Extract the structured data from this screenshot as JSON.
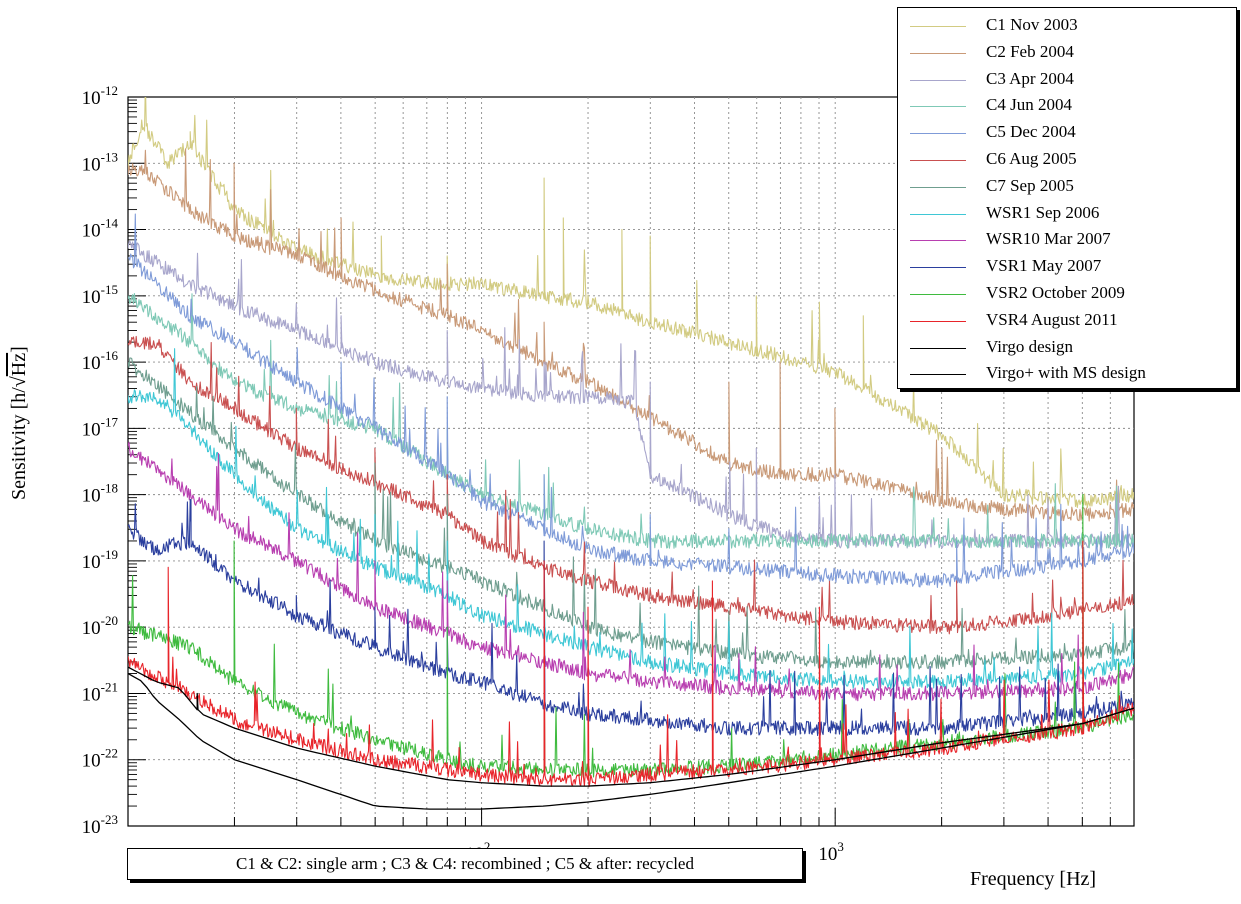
{
  "chart_data": {
    "type": "line",
    "title": "",
    "xlabel": "Frequency [Hz]",
    "ylabel_main": "Sensitivity [h/",
    "ylabel_sqrt": "Hz",
    "ylabel_end": "]",
    "x_scale": "log",
    "y_scale": "log",
    "xlim": [
      10,
      7000
    ],
    "ylim": [
      1e-23,
      1e-12
    ],
    "grid": true,
    "legend_position": "top-right",
    "x_ticks": [
      {
        "base": "10",
        "exp": "2"
      },
      {
        "base": "10",
        "exp": "3"
      }
    ],
    "y_ticks": [
      {
        "base": "10",
        "exp": "-12"
      },
      {
        "base": "10",
        "exp": "-13"
      },
      {
        "base": "10",
        "exp": "-14"
      },
      {
        "base": "10",
        "exp": "-15"
      },
      {
        "base": "10",
        "exp": "-16"
      },
      {
        "base": "10",
        "exp": "-17"
      },
      {
        "base": "10",
        "exp": "-18"
      },
      {
        "base": "10",
        "exp": "-19"
      },
      {
        "base": "10",
        "exp": "-20"
      },
      {
        "base": "10",
        "exp": "-21"
      },
      {
        "base": "10",
        "exp": "-22"
      },
      {
        "base": "10",
        "exp": "-23"
      }
    ],
    "annotation": "C1 & C2: single arm ; C3 & C4: recombined ; C5 & after: recycled",
    "series": [
      {
        "name": "C1 Nov 2003",
        "color": "#d2cb82",
        "x": [
          10,
          11,
          13,
          15,
          20,
          30,
          50,
          80,
          100,
          150,
          200,
          300,
          500,
          800,
          1000,
          1500,
          2000,
          3000,
          5000,
          7000
        ],
        "y": [
          1e-13,
          4e-13,
          1e-13,
          2e-13,
          2e-14,
          5e-15,
          2e-15,
          1.5e-15,
          1.5e-15,
          1e-15,
          8e-16,
          4e-16,
          2e-16,
          1e-16,
          7e-17,
          2e-17,
          8e-18,
          1e-18,
          8e-19,
          1e-18
        ],
        "spikes": [
          [
            15,
            3e-13
          ],
          [
            52,
            8e-15
          ],
          [
            80,
            4e-15
          ],
          [
            150,
            6e-14
          ],
          [
            170,
            1.5e-14
          ],
          [
            250,
            1e-14
          ],
          [
            300,
            8e-15
          ],
          [
            600,
            1e-15
          ],
          [
            900,
            8e-16
          ],
          [
            1200,
            5e-16
          ]
        ]
      },
      {
        "name": "C2 Feb 2004",
        "color": "#c99a78",
        "x": [
          10,
          11,
          15,
          20,
          30,
          50,
          80,
          100,
          150,
          200,
          300,
          500,
          700,
          1000,
          1500,
          2000,
          3000,
          5000,
          7000
        ],
        "y": [
          8e-14,
          8e-14,
          2e-14,
          8e-15,
          4e-15,
          1.2e-15,
          5e-16,
          3e-16,
          1e-16,
          5e-17,
          1.5e-17,
          3e-18,
          2e-18,
          2e-18,
          1.2e-18,
          8e-19,
          6e-19,
          5e-19,
          6e-19
        ],
        "spikes": [
          [
            20,
            1e-13
          ],
          [
            40,
            1.5e-14
          ],
          [
            80,
            3e-15
          ],
          [
            150,
            4e-16
          ],
          [
            300,
            2e-17
          ],
          [
            500,
            5e-17
          ],
          [
            700,
            1e-16
          ],
          [
            1000,
            2e-17
          ],
          [
            2000,
            5e-18
          ]
        ]
      },
      {
        "name": "C3 Apr 2004",
        "color": "#a8a6cc",
        "x": [
          10,
          15,
          20,
          30,
          50,
          80,
          100,
          150,
          200,
          270,
          300,
          500,
          700,
          1000,
          1500,
          2000,
          3000,
          5000,
          7000
        ],
        "y": [
          6e-15,
          1.5e-15,
          7e-16,
          3e-16,
          1e-16,
          5e-17,
          4e-17,
          3e-17,
          3e-17,
          2.5e-17,
          2e-18,
          5e-19,
          2.5e-19,
          2e-19,
          2e-19,
          2e-19,
          2e-19,
          2e-19,
          2e-19
        ],
        "spikes": [
          [
            40,
            5e-16
          ],
          [
            80,
            3e-16
          ],
          [
            150,
            1e-16
          ],
          [
            300,
            5e-17
          ],
          [
            600,
            5e-18
          ],
          [
            1000,
            2e-18
          ]
        ]
      },
      {
        "name": "C4 Jun 2004",
        "color": "#7fc9b6",
        "x": [
          10,
          15,
          20,
          30,
          50,
          80,
          100,
          150,
          200,
          300,
          500,
          1000,
          2000,
          3000,
          5000,
          7000
        ],
        "y": [
          1e-15,
          2e-16,
          5e-17,
          2e-17,
          1e-17,
          2e-18,
          1e-18,
          5e-19,
          3e-19,
          2e-19,
          2e-19,
          2e-19,
          2e-19,
          2e-19,
          2e-19,
          2e-19
        ],
        "spikes": [
          [
            40,
            3e-17
          ],
          [
            80,
            1e-17
          ],
          [
            150,
            2e-18
          ]
        ]
      },
      {
        "name": "C5 Dec 2004",
        "color": "#7f9bd8",
        "x": [
          10,
          15,
          20,
          30,
          50,
          80,
          100,
          150,
          200,
          300,
          500,
          1000,
          2000,
          3000,
          5000,
          7000
        ],
        "y": [
          4e-15,
          5e-16,
          2e-16,
          5e-17,
          1e-17,
          2e-18,
          8e-19,
          3e-19,
          1.5e-19,
          1e-19,
          8e-20,
          6e-20,
          5e-20,
          7e-20,
          1e-19,
          1.5e-19
        ],
        "spikes": [
          [
            40,
            1e-16
          ],
          [
            80,
            3e-17
          ],
          [
            150,
            2e-18
          ],
          [
            300,
            5e-19
          ],
          [
            2200,
            2e-19
          ]
        ]
      },
      {
        "name": "C6 Aug 2005",
        "color": "#c95050",
        "x": [
          10,
          12,
          15,
          20,
          30,
          50,
          80,
          100,
          150,
          200,
          300,
          500,
          1000,
          2000,
          3000,
          5000,
          7000
        ],
        "y": [
          2e-16,
          2e-16,
          5e-17,
          2e-17,
          5e-18,
          1.5e-18,
          5e-19,
          2e-19,
          8e-20,
          5e-20,
          3e-20,
          2e-20,
          1.2e-20,
          1e-20,
          1.2e-20,
          1.8e-20,
          2.5e-20
        ],
        "spikes": [
          [
            30,
            2e-17
          ],
          [
            50,
            5e-18
          ],
          [
            80,
            2e-18
          ],
          [
            2200,
            5e-20
          ]
        ]
      },
      {
        "name": "C7 Sep 2005",
        "color": "#6f9e8f",
        "x": [
          10,
          20,
          30,
          50,
          80,
          100,
          150,
          200,
          300,
          500,
          1000,
          2000,
          5000,
          7000
        ],
        "y": [
          1e-16,
          5e-18,
          1e-18,
          2e-19,
          8e-20,
          5e-20,
          2e-20,
          1e-20,
          6e-21,
          4e-21,
          3e-21,
          3e-21,
          4e-21,
          5e-21
        ],
        "spikes": [
          [
            50,
            3e-18
          ],
          [
            80,
            1e-18
          ],
          [
            150,
            1e-19
          ]
        ]
      },
      {
        "name": "WSR1 Sep 2006",
        "color": "#3fc7d5",
        "x": [
          10,
          12,
          15,
          20,
          30,
          50,
          80,
          100,
          150,
          200,
          300,
          500,
          1000,
          2000,
          5000,
          7000
        ],
        "y": [
          3e-17,
          3e-17,
          1e-17,
          2e-18,
          3e-19,
          8e-20,
          3e-20,
          1.5e-20,
          8e-21,
          5e-21,
          3e-21,
          2e-21,
          1.5e-21,
          1.5e-21,
          2e-21,
          3e-21
        ],
        "spikes": [
          [
            50,
            5e-19
          ],
          [
            80,
            2e-19
          ],
          [
            150,
            5e-20
          ]
        ]
      },
      {
        "name": "WSR10 Mar 2007",
        "color": "#b83fb0",
        "x": [
          10,
          15,
          20,
          30,
          50,
          80,
          100,
          150,
          200,
          300,
          500,
          1000,
          2000,
          5000,
          7000
        ],
        "y": [
          5e-18,
          1e-18,
          3e-19,
          1e-19,
          2e-20,
          8e-21,
          5e-21,
          3e-21,
          2e-21,
          1.5e-21,
          1.2e-21,
          1e-21,
          1e-21,
          1.2e-21,
          2e-21
        ],
        "spikes": [
          [
            50,
            1e-19
          ],
          [
            80,
            5e-20
          ]
        ]
      },
      {
        "name": "VSR1 May 2007",
        "color": "#2b3f9e",
        "x": [
          10,
          12,
          15,
          20,
          30,
          50,
          80,
          100,
          150,
          200,
          300,
          500,
          1000,
          2000,
          5000,
          7000
        ],
        "y": [
          3e-19,
          1.5e-19,
          2e-19,
          5e-20,
          1.5e-20,
          5e-21,
          2e-21,
          1.5e-21,
          7e-22,
          5e-22,
          4e-22,
          3e-22,
          3e-22,
          3e-22,
          5e-22,
          7e-22
        ],
        "spikes": [
          [
            15,
            4e-19
          ],
          [
            30,
            3e-20
          ],
          [
            50,
            2e-20
          ],
          [
            80,
            1e-20
          ],
          [
            150,
            2e-19
          ]
        ]
      },
      {
        "name": "VSR2 October 2009",
        "color": "#3fbb3f",
        "x": [
          10,
          15,
          20,
          30,
          50,
          80,
          100,
          150,
          200,
          300,
          500,
          1000,
          2000,
          5000,
          7000
        ],
        "y": [
          1e-20,
          5e-21,
          1.5e-21,
          5e-22,
          2e-22,
          1e-22,
          8e-23,
          7e-23,
          7e-23,
          7e-23,
          8e-23,
          1.2e-22,
          1.8e-22,
          3e-22,
          5e-22
        ],
        "spikes": [
          [
            20,
            2e-19
          ],
          [
            80,
            1e-20
          ],
          [
            150,
            5e-21
          ],
          [
            5000,
            1e-18
          ]
        ]
      },
      {
        "name": "VSR4 August 2011",
        "color": "#e8242a",
        "x": [
          10,
          15,
          20,
          30,
          50,
          80,
          100,
          150,
          200,
          300,
          500,
          1000,
          2000,
          5000,
          7000
        ],
        "y": [
          3e-21,
          1e-21,
          4e-22,
          2e-22,
          1e-22,
          7e-23,
          6e-23,
          5e-23,
          5e-23,
          6e-23,
          7e-23,
          1e-22,
          1.5e-22,
          3e-22,
          6e-22
        ],
        "spikes": [
          [
            13,
            8e-20
          ],
          [
            150,
            1e-19
          ],
          [
            200,
            2e-20
          ],
          [
            450,
            5e-20
          ],
          [
            900,
            2e-20
          ],
          [
            5000,
            2e-19
          ]
        ]
      },
      {
        "name": "Virgo design",
        "color": "#000000",
        "x": [
          10,
          11,
          12,
          14,
          16,
          20,
          30,
          50,
          70,
          100,
          150,
          200,
          300,
          500,
          1000,
          2000,
          5000,
          7000
        ],
        "y": [
          2e-21,
          1.5e-21,
          8e-22,
          4e-22,
          2e-22,
          1e-22,
          5e-23,
          2e-23,
          1.8e-23,
          1.8e-23,
          2e-23,
          2.3e-23,
          3e-23,
          4.5e-23,
          8e-23,
          1.5e-22,
          3.5e-22,
          6e-22
        ],
        "spikes": []
      },
      {
        "name": "Virgo+ with MS design",
        "color": "#000000",
        "x": [
          10,
          12,
          14,
          16,
          20,
          30,
          50,
          80,
          100,
          150,
          200,
          300,
          500,
          1000,
          2000,
          5000,
          7000
        ],
        "y": [
          2.5e-21,
          1.5e-21,
          1.2e-21,
          5e-22,
          3e-22,
          1.5e-22,
          8e-23,
          5e-23,
          4.5e-23,
          4e-23,
          4e-23,
          4.5e-23,
          6e-23,
          1e-22,
          1.8e-22,
          3.5e-22,
          6e-22
        ],
        "spikes": [
          [
            16,
            1e-21
          ]
        ]
      }
    ]
  }
}
